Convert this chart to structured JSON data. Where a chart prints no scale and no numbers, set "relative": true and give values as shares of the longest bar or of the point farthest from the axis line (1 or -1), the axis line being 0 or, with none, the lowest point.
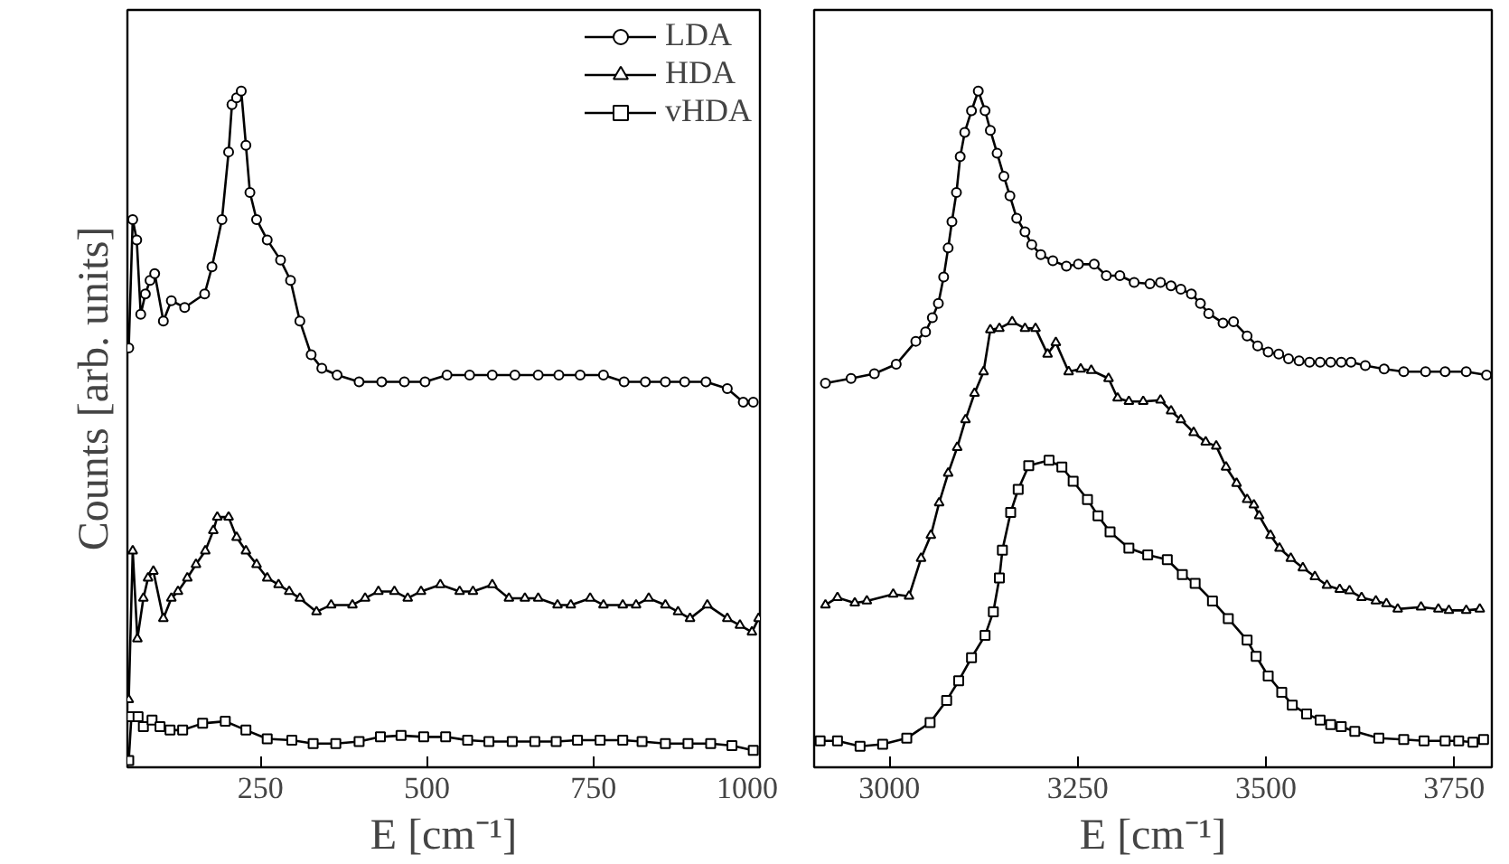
{
  "chart_data": [
    {
      "type": "line",
      "relative": true,
      "ylabel": "Counts [arb. units]",
      "xlabel": "E [cm⁻¹]",
      "xlim": [
        50,
        1000
      ],
      "xticks": [
        250,
        500,
        750,
        1000
      ],
      "tick_labels": "x",
      "legend": "top right",
      "grid": false,
      "line_style": "solid",
      "series": [
        {
          "name": "LDA",
          "color": "#000000",
          "marker": "circle",
          "x": [
            52,
            58,
            64,
            70,
            77,
            84,
            91,
            104,
            116,
            136,
            166,
            177,
            192,
            202,
            207,
            214,
            221,
            228,
            234,
            244,
            260,
            280,
            295,
            309,
            326,
            342,
            365,
            398,
            432,
            466,
            497,
            530,
            564,
            598,
            632,
            667,
            698,
            730,
            765,
            796,
            828,
            858,
            887,
            919,
            951,
            975,
            990
          ],
          "values": [
            0.62,
            0.81,
            0.78,
            0.67,
            0.7,
            0.72,
            0.73,
            0.66,
            0.69,
            0.68,
            0.7,
            0.74,
            0.81,
            0.91,
            0.98,
            0.99,
            1.0,
            0.92,
            0.85,
            0.81,
            0.78,
            0.75,
            0.72,
            0.66,
            0.61,
            0.59,
            0.58,
            0.57,
            0.57,
            0.57,
            0.57,
            0.58,
            0.58,
            0.58,
            0.58,
            0.58,
            0.58,
            0.58,
            0.58,
            0.57,
            0.57,
            0.57,
            0.57,
            0.57,
            0.56,
            0.54,
            0.54
          ]
        },
        {
          "name": "HDA",
          "color": "#000000",
          "marker": "triangle",
          "x": [
            52,
            58,
            65,
            74,
            81,
            89,
            104,
            116,
            126,
            140,
            153,
            167,
            179,
            185,
            202,
            214,
            228,
            244,
            260,
            277,
            293,
            309,
            334,
            356,
            388,
            407,
            427,
            451,
            471,
            491,
            520,
            549,
            569,
            598,
            623,
            647,
            667,
            696,
            716,
            745,
            765,
            794,
            814,
            833,
            858,
            877,
            895,
            921,
            951,
            970,
            988,
            998
          ],
          "values": [
            0.1,
            0.32,
            0.19,
            0.25,
            0.28,
            0.29,
            0.22,
            0.25,
            0.26,
            0.28,
            0.3,
            0.32,
            0.35,
            0.37,
            0.37,
            0.34,
            0.32,
            0.3,
            0.28,
            0.27,
            0.26,
            0.25,
            0.23,
            0.24,
            0.24,
            0.25,
            0.26,
            0.26,
            0.25,
            0.26,
            0.27,
            0.26,
            0.26,
            0.27,
            0.25,
            0.25,
            0.25,
            0.24,
            0.24,
            0.25,
            0.24,
            0.24,
            0.24,
            0.25,
            0.24,
            0.23,
            0.22,
            0.24,
            0.22,
            0.21,
            0.2,
            0.22
          ]
        },
        {
          "name": "vHDA",
          "color": "#000000",
          "marker": "square",
          "x": [
            52,
            56,
            66,
            74,
            87,
            99,
            114,
            133,
            163,
            197,
            228,
            260,
            297,
            329,
            363,
            398,
            430,
            461,
            495,
            528,
            561,
            593,
            628,
            662,
            694,
            726,
            760,
            794,
            823,
            858,
            892,
            926,
            958,
            990
          ],
          "values": [
            0.01,
            0.075,
            0.075,
            0.06,
            0.07,
            0.06,
            0.055,
            0.055,
            0.065,
            0.068,
            0.055,
            0.042,
            0.04,
            0.035,
            0.035,
            0.038,
            0.045,
            0.047,
            0.045,
            0.045,
            0.04,
            0.038,
            0.038,
            0.038,
            0.038,
            0.04,
            0.04,
            0.04,
            0.038,
            0.035,
            0.035,
            0.035,
            0.032,
            0.025
          ]
        }
      ]
    },
    {
      "type": "line",
      "relative": true,
      "xlabel": "E [cm⁻¹]",
      "xlim": [
        2900,
        3800
      ],
      "xticks": [
        3000,
        3250,
        3500,
        3750
      ],
      "tick_labels": "x",
      "grid": false,
      "line_style": "solid",
      "series": [
        {
          "color": "#000000",
          "marker": "circle",
          "x": [
            2915,
            2949,
            2980,
            3009,
            3035,
            3048,
            3057,
            3065,
            3072,
            3078,
            3083,
            3089,
            3094,
            3100,
            3109,
            3118,
            3127,
            3134,
            3143,
            3152,
            3160,
            3169,
            3180,
            3189,
            3201,
            3217,
            3235,
            3251,
            3272,
            3288,
            3306,
            3325,
            3346,
            3360,
            3374,
            3387,
            3401,
            3413,
            3424,
            3443,
            3457,
            3475,
            3489,
            3503,
            3517,
            3530,
            3544,
            3558,
            3572,
            3586,
            3600,
            3613,
            3632,
            3657,
            3683,
            3712,
            3738,
            3766,
            3793
          ],
          "values": [
            0.568,
            0.575,
            0.582,
            0.596,
            0.63,
            0.644,
            0.665,
            0.686,
            0.725,
            0.768,
            0.807,
            0.85,
            0.903,
            0.939,
            0.971,
            1.0,
            0.971,
            0.942,
            0.908,
            0.874,
            0.845,
            0.812,
            0.792,
            0.773,
            0.758,
            0.749,
            0.741,
            0.744,
            0.744,
            0.727,
            0.727,
            0.717,
            0.715,
            0.717,
            0.712,
            0.707,
            0.7,
            0.686,
            0.671,
            0.657,
            0.659,
            0.638,
            0.623,
            0.614,
            0.611,
            0.604,
            0.601,
            0.599,
            0.599,
            0.599,
            0.599,
            0.599,
            0.594,
            0.589,
            0.585,
            0.585,
            0.585,
            0.585,
            0.58
          ]
        },
        {
          "color": "#000000",
          "marker": "triangle",
          "x": [
            2915,
            2931,
            2954,
            2970,
            3005,
            3026,
            3042,
            3055,
            3066,
            3078,
            3090,
            3101,
            3113,
            3125,
            3134,
            3146,
            3163,
            3180,
            3194,
            3210,
            3221,
            3238,
            3254,
            3268,
            3291,
            3303,
            3318,
            3337,
            3360,
            3374,
            3387,
            3404,
            3420,
            3434,
            3447,
            3461,
            3475,
            3484,
            3491,
            3506,
            3518,
            3533,
            3549,
            3565,
            3581,
            3598,
            3611,
            3627,
            3646,
            3660,
            3675,
            3706,
            3729,
            3743,
            3766,
            3784
          ],
          "values": [
            0.24,
            0.251,
            0.243,
            0.246,
            0.256,
            0.253,
            0.309,
            0.343,
            0.391,
            0.435,
            0.473,
            0.514,
            0.553,
            0.585,
            0.647,
            0.649,
            0.659,
            0.649,
            0.649,
            0.611,
            0.628,
            0.585,
            0.589,
            0.587,
            0.575,
            0.546,
            0.541,
            0.541,
            0.543,
            0.527,
            0.514,
            0.495,
            0.481,
            0.475,
            0.444,
            0.42,
            0.396,
            0.388,
            0.372,
            0.343,
            0.324,
            0.309,
            0.295,
            0.282,
            0.269,
            0.263,
            0.261,
            0.251,
            0.246,
            0.242,
            0.234,
            0.237,
            0.234,
            0.232,
            0.232,
            0.234
          ]
        },
        {
          "color": "#000000",
          "marker": "square",
          "x": [
            2908,
            2931,
            2961,
            2991,
            3023,
            3054,
            3076,
            3092,
            3109,
            3127,
            3138,
            3146,
            3150,
            3161,
            3171,
            3185,
            3212,
            3229,
            3244,
            3263,
            3277,
            3293,
            3318,
            3343,
            3369,
            3389,
            3406,
            3429,
            3450,
            3475,
            3487,
            3503,
            3521,
            3535,
            3554,
            3572,
            3586,
            3600,
            3618,
            3650,
            3683,
            3710,
            3738,
            3756,
            3775,
            3789
          ],
          "values": [
            0.039,
            0.039,
            0.031,
            0.034,
            0.043,
            0.066,
            0.099,
            0.128,
            0.162,
            0.195,
            0.23,
            0.28,
            0.321,
            0.377,
            0.411,
            0.446,
            0.454,
            0.444,
            0.423,
            0.396,
            0.372,
            0.348,
            0.324,
            0.314,
            0.307,
            0.285,
            0.272,
            0.246,
            0.22,
            0.188,
            0.164,
            0.135,
            0.111,
            0.092,
            0.079,
            0.07,
            0.063,
            0.06,
            0.053,
            0.043,
            0.041,
            0.039,
            0.039,
            0.039,
            0.037,
            0.041
          ]
        }
      ]
    }
  ]
}
